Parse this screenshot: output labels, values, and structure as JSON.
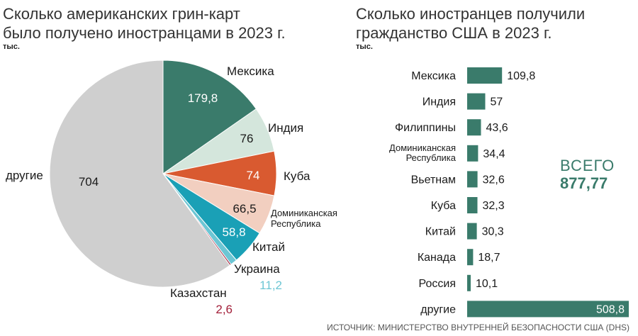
{
  "chart_data": [
    {
      "type": "pie",
      "title": "Сколько американских грин-карт было получено иностранцами в 2023 г.",
      "title_lines": [
        "Сколько американских грин-карт",
        "было получено иностранцами в 2023 г."
      ],
      "unit": "тыс.",
      "slices": [
        {
          "name": "Мексика",
          "value": 179.8,
          "display": "179,8",
          "color": "#3a7b6b",
          "label_color": "#ffffff"
        },
        {
          "name": "Индия",
          "value": 76,
          "display": "76",
          "color": "#d4e6dc",
          "label_color": "#1a1a1a"
        },
        {
          "name": "Куба",
          "value": 74,
          "display": "74",
          "color": "#d95a30",
          "label_color": "#ffffff"
        },
        {
          "name": "Доминиканская Республика",
          "name_lines": [
            "Доминиканская",
            "Республика"
          ],
          "value": 66.5,
          "display": "66,5",
          "color": "#f2cfc0",
          "label_color": "#1a1a1a"
        },
        {
          "name": "Китай",
          "value": 58.8,
          "display": "58,8",
          "color": "#1aa0b6",
          "label_color": "#ffffff"
        },
        {
          "name": "Украина",
          "value": 11.2,
          "display": "11,2",
          "color": "#6dc6d4",
          "label_color": "#6dc6d4"
        },
        {
          "name": "Казахстан",
          "value": 2.6,
          "display": "2,6",
          "color": "#a3203a",
          "label_color": "#a3203a"
        },
        {
          "name": "другие",
          "value": 704,
          "display": "704",
          "color": "#cfcfcf",
          "label_color": "#1a1a1a"
        }
      ]
    },
    {
      "type": "bar",
      "orientation": "horizontal",
      "title": "Сколько иностранцев получили гражданство США в 2023 г.",
      "title_lines": [
        "Сколько иностранцев получили",
        "гражданство США в 2023 г."
      ],
      "unit": "тыс.",
      "color": "#3a7b6b",
      "categories": [
        "Мексика",
        "Индия",
        "Филиппины",
        "Доминиканская Республика",
        "Вьетнам",
        "Куба",
        "Китай",
        "Канада",
        "Россия",
        "другие"
      ],
      "category_lines": [
        [
          "Мексика"
        ],
        [
          "Индия"
        ],
        [
          "Филиппины"
        ],
        [
          "Доминиканская",
          "Республика"
        ],
        [
          "Вьетнам"
        ],
        [
          "Куба"
        ],
        [
          "Китай"
        ],
        [
          "Канада"
        ],
        [
          "Россия"
        ],
        [
          "другие"
        ]
      ],
      "values": [
        109.8,
        57,
        43.6,
        34.4,
        32.6,
        32.3,
        30.3,
        18.7,
        10.1,
        508.8
      ],
      "value_labels": [
        "109,8",
        "57",
        "43,6",
        "34,4",
        "32,6",
        "32,3",
        "30,3",
        "18,7",
        "10,1",
        "508,8"
      ],
      "total_label": "ВСЕГО",
      "total_value": "877,77"
    }
  ],
  "source": "ИСТОЧНИК: МИНИСТЕРСТВО ВНУТРЕННЕЙ БЕЗОПАСНОСТИ США (DHS)"
}
